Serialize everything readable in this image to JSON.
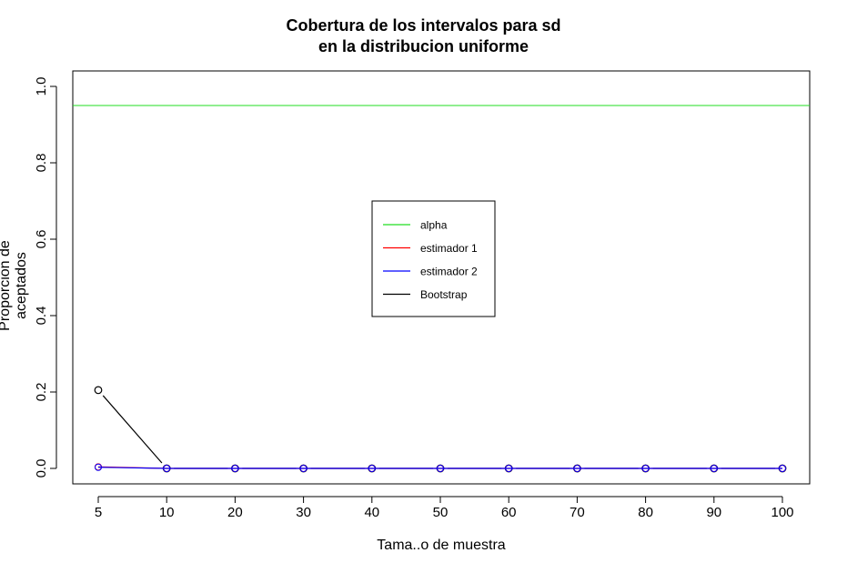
{
  "chart_data": {
    "type": "line",
    "title": "Cobertura de los intervalos para sd",
    "subtitle": "en la distribucion uniforme",
    "xlabel": "Tama..o de muestra",
    "ylabel": "Proporcion de aceptados",
    "categories": [
      "5",
      "10",
      "20",
      "30",
      "40",
      "50",
      "60",
      "70",
      "80",
      "90",
      "100"
    ],
    "ylim": [
      0,
      1.0
    ],
    "yticks": [
      "0.0",
      "0.2",
      "0.4",
      "0.6",
      "0.8",
      "1.0"
    ],
    "grid": false,
    "legend_position": "center",
    "hline": {
      "name": "alpha",
      "value": 0.95,
      "color": "#22dd22"
    },
    "series": [
      {
        "name": "estimador 1",
        "color": "#ff0000",
        "values": [
          0.004,
          0,
          0,
          0,
          0,
          0,
          0,
          0,
          0,
          0,
          0
        ]
      },
      {
        "name": "estimador 2",
        "color": "#0000ff",
        "values": [
          0.003,
          0,
          0,
          0,
          0,
          0,
          0,
          0,
          0,
          0,
          0
        ]
      },
      {
        "name": "Bootstrap",
        "color": "#000000",
        "values": [
          0.205,
          0,
          0,
          0,
          0,
          0,
          0,
          0,
          0,
          0,
          0
        ]
      }
    ],
    "legend": [
      "alpha",
      "estimador 1",
      "estimador 2",
      "Bootstrap"
    ]
  }
}
